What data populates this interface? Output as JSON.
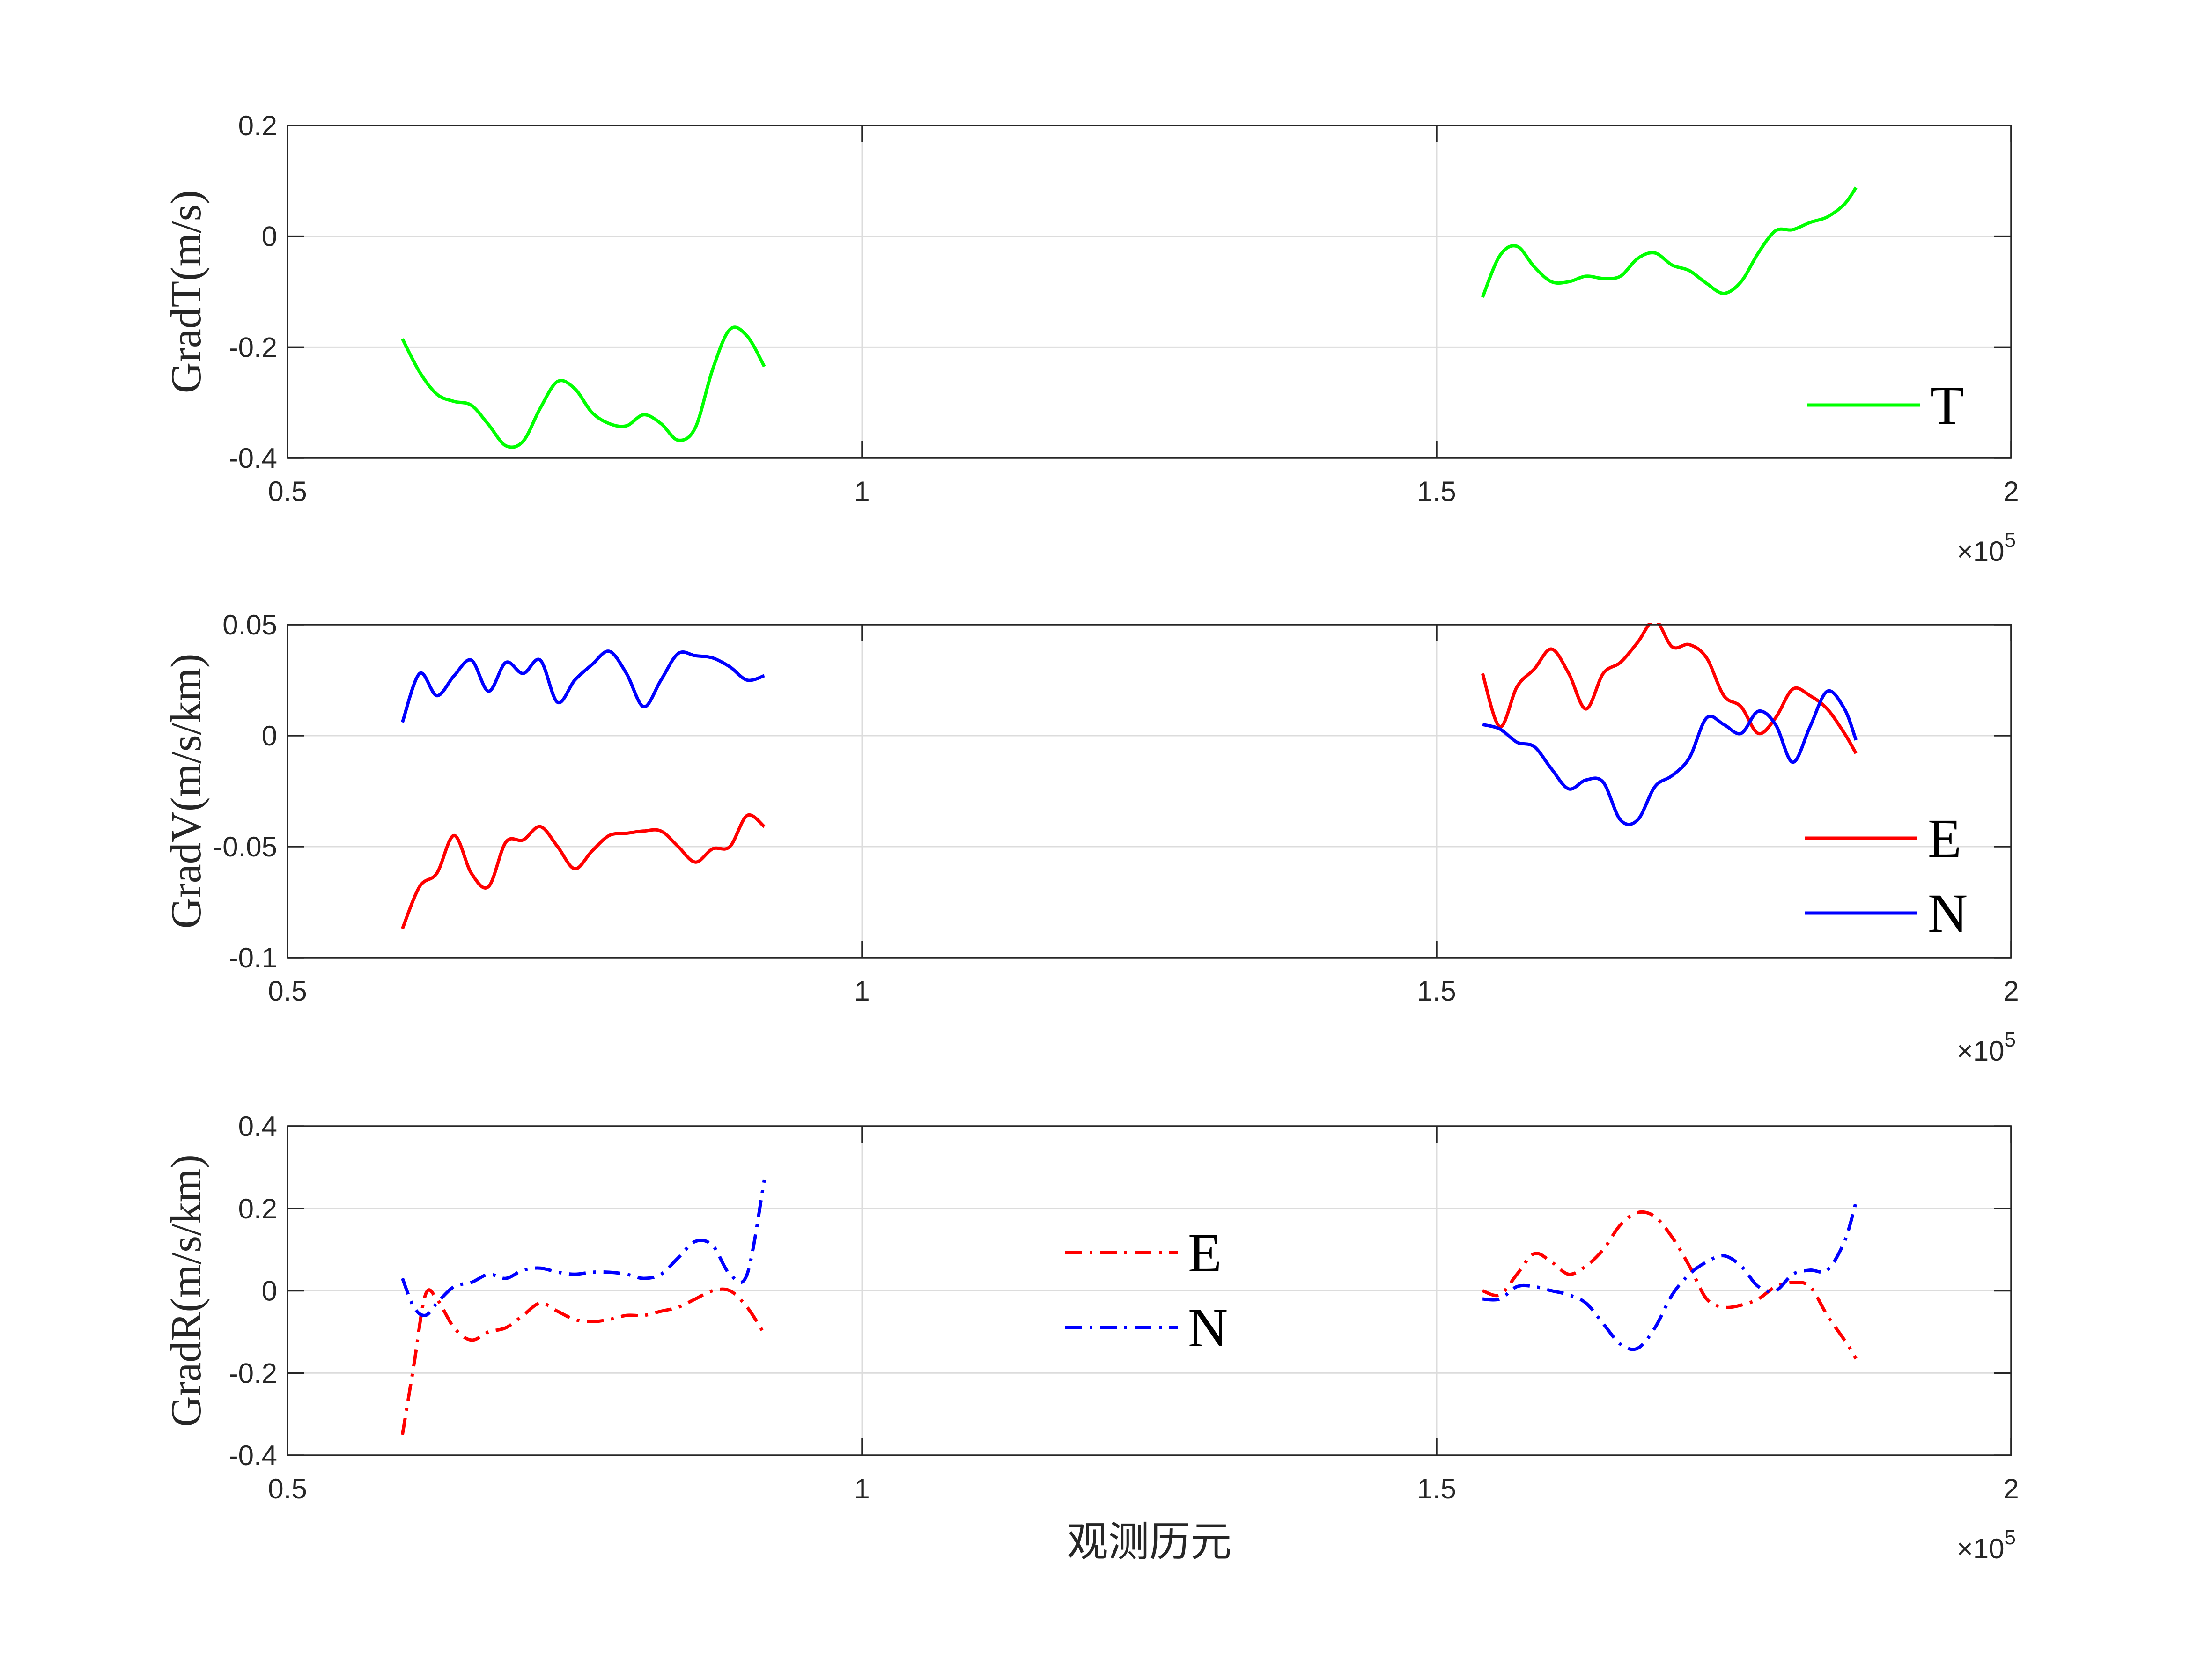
{
  "chart_data": [
    {
      "type": "line",
      "id": "gradT",
      "ylabel": "GradT(m/s)",
      "xlabel": "",
      "x_exponent": "×10",
      "x_exponent_power": "5",
      "xlim": [
        50000,
        200000
      ],
      "ylim": [
        -0.4,
        0.2
      ],
      "xticks": [
        50000,
        100000,
        150000,
        200000
      ],
      "xtick_labels": [
        "0.5",
        "1",
        "1.5",
        "2"
      ],
      "yticks": [
        -0.4,
        -0.2,
        0,
        0.2
      ],
      "ytick_labels": [
        "-0.4",
        "-0.2",
        "0",
        "0.2"
      ],
      "grid": true,
      "legend": {
        "position": "bottom-right",
        "entries": [
          "T"
        ]
      },
      "series": [
        {
          "name": "T",
          "color": "#00ff00",
          "style": "solid",
          "segments": [
            {
              "x": [
                60000,
                61500,
                63000,
                64500,
                66000,
                67500,
                69000,
                70500,
                72000,
                73500,
                75000,
                76500,
                78000,
                79500,
                81000,
                82500,
                84000,
                85500,
                87000,
                88500,
                90000,
                91500
              ],
              "y": [
                -0.185,
                -0.245,
                -0.285,
                -0.298,
                -0.305,
                -0.34,
                -0.378,
                -0.37,
                -0.31,
                -0.262,
                -0.275,
                -0.318,
                -0.338,
                -0.342,
                -0.322,
                -0.338,
                -0.368,
                -0.345,
                -0.24,
                -0.168,
                -0.18,
                -0.235
              ]
            },
            {
              "x": [
                154000,
                155500,
                157000,
                158500,
                160000,
                161500,
                163000,
                164500,
                166000,
                167500,
                169000,
                170500,
                172000,
                173500,
                175000,
                176500,
                178000,
                179500,
                181000,
                182500,
                184000,
                185500,
                186500
              ],
              "y": [
                -0.11,
                -0.035,
                -0.018,
                -0.055,
                -0.082,
                -0.082,
                -0.072,
                -0.076,
                -0.072,
                -0.04,
                -0.03,
                -0.052,
                -0.062,
                -0.085,
                -0.103,
                -0.082,
                -0.03,
                0.01,
                0.012,
                0.025,
                0.035,
                0.058,
                0.088
              ]
            }
          ]
        }
      ]
    },
    {
      "type": "line",
      "id": "gradV",
      "ylabel": "GradV(m/s/km)",
      "xlabel": "",
      "x_exponent": "×10",
      "x_exponent_power": "5",
      "xlim": [
        50000,
        200000
      ],
      "ylim": [
        -0.1,
        0.05
      ],
      "xticks": [
        50000,
        100000,
        150000,
        200000
      ],
      "xtick_labels": [
        "0.5",
        "1",
        "1.5",
        "2"
      ],
      "yticks": [
        -0.1,
        -0.05,
        0,
        0.05
      ],
      "ytick_labels": [
        "-0.1",
        "-0.05",
        "0",
        "0.05"
      ],
      "grid": true,
      "legend": {
        "position": "bottom-right",
        "entries": [
          "E",
          "N"
        ]
      },
      "series": [
        {
          "name": "E",
          "color": "#ff0000",
          "style": "solid",
          "segments": [
            {
              "x": [
                60000,
                61500,
                63000,
                64500,
                66000,
                67500,
                69000,
                70500,
                72000,
                73500,
                75000,
                76500,
                78000,
                79500,
                81000,
                82500,
                84000,
                85500,
                87000,
                88500,
                90000,
                91500
              ],
              "y": [
                -0.087,
                -0.068,
                -0.062,
                -0.045,
                -0.062,
                -0.068,
                -0.048,
                -0.047,
                -0.041,
                -0.05,
                -0.06,
                -0.052,
                -0.045,
                -0.044,
                -0.043,
                -0.043,
                -0.05,
                -0.057,
                -0.051,
                -0.05,
                -0.036,
                -0.041
              ]
            },
            {
              "x": [
                154000,
                155500,
                157000,
                158500,
                160000,
                161500,
                163000,
                164500,
                166000,
                167500,
                169000,
                170500,
                172000,
                173500,
                175000,
                176500,
                178000,
                179500,
                181000,
                182500,
                184000,
                185500,
                186500
              ],
              "y": [
                0.028,
                0.004,
                0.022,
                0.03,
                0.039,
                0.028,
                0.012,
                0.028,
                0.033,
                0.042,
                0.052,
                0.04,
                0.041,
                0.035,
                0.018,
                0.013,
                0.001,
                0.008,
                0.021,
                0.018,
                0.012,
                0.001,
                -0.008
              ]
            }
          ]
        },
        {
          "name": "N",
          "color": "#0000ff",
          "style": "solid",
          "segments": [
            {
              "x": [
                60000,
                61500,
                63000,
                64500,
                66000,
                67500,
                69000,
                70500,
                72000,
                73500,
                75000,
                76500,
                78000,
                79500,
                81000,
                82500,
                84000,
                85500,
                87000,
                88500,
                90000,
                91500
              ],
              "y": [
                0.006,
                0.028,
                0.018,
                0.027,
                0.034,
                0.02,
                0.033,
                0.028,
                0.034,
                0.015,
                0.025,
                0.032,
                0.038,
                0.028,
                0.013,
                0.025,
                0.037,
                0.036,
                0.035,
                0.031,
                0.025,
                0.027
              ]
            },
            {
              "x": [
                154000,
                155500,
                157000,
                158500,
                160000,
                161500,
                163000,
                164500,
                166000,
                167500,
                169000,
                170500,
                172000,
                173500,
                175000,
                176500,
                178000,
                179500,
                181000,
                182500,
                184000,
                185500,
                186500
              ],
              "y": [
                0.005,
                0.003,
                -0.003,
                -0.005,
                -0.015,
                -0.024,
                -0.02,
                -0.021,
                -0.038,
                -0.038,
                -0.023,
                -0.018,
                -0.01,
                0.008,
                0.005,
                0.001,
                0.011,
                0.005,
                -0.012,
                0.004,
                0.02,
                0.012,
                -0.002
              ]
            }
          ]
        }
      ]
    },
    {
      "type": "line",
      "id": "gradR",
      "ylabel": "GradR(m/s/km)",
      "xlabel": "观测历元",
      "x_exponent": "×10",
      "x_exponent_power": "5",
      "xlim": [
        50000,
        200000
      ],
      "ylim": [
        -0.4,
        0.4
      ],
      "xticks": [
        50000,
        100000,
        150000,
        200000
      ],
      "xtick_labels": [
        "0.5",
        "1",
        "1.5",
        "2"
      ],
      "yticks": [
        -0.4,
        -0.2,
        0,
        0.2,
        0.4
      ],
      "ytick_labels": [
        "-0.4",
        "-0.2",
        "0",
        "0.2",
        "0.4"
      ],
      "grid": true,
      "legend": {
        "position": "center",
        "entries": [
          "E",
          "N"
        ]
      },
      "series": [
        {
          "name": "E",
          "color": "#ff0000",
          "style": "dashdot",
          "segments": [
            {
              "x": [
                60000,
                61000,
                62000,
                63000,
                64500,
                66000,
                67500,
                69000,
                70500,
                72000,
                73500,
                75000,
                76500,
                78000,
                79500,
                81000,
                82500,
                84000,
                85500,
                87000,
                88500,
                90000,
                91500
              ],
              "y": [
                -0.35,
                -0.18,
                -0.01,
                -0.02,
                -0.09,
                -0.12,
                -0.1,
                -0.09,
                -0.06,
                -0.03,
                -0.05,
                -0.07,
                -0.075,
                -0.07,
                -0.06,
                -0.06,
                -0.05,
                -0.04,
                -0.02,
                0.0,
                0.0,
                -0.04,
                -0.105
              ]
            },
            {
              "x": [
                154000,
                155500,
                157000,
                158500,
                160000,
                161500,
                163000,
                164500,
                166000,
                167500,
                169000,
                170500,
                172000,
                173500,
                175000,
                176500,
                178000,
                179500,
                181000,
                182500,
                184000,
                185500,
                186500
              ],
              "y": [
                0.0,
                -0.01,
                0.04,
                0.09,
                0.07,
                0.04,
                0.06,
                0.1,
                0.16,
                0.19,
                0.18,
                0.13,
                0.06,
                -0.02,
                -0.04,
                -0.035,
                -0.02,
                0.01,
                0.02,
                0.01,
                -0.06,
                -0.12,
                -0.165
              ]
            }
          ]
        },
        {
          "name": "N",
          "color": "#0000ff",
          "style": "dashdot",
          "segments": [
            {
              "x": [
                60000,
                61000,
                62000,
                63000,
                64500,
                66000,
                67500,
                69000,
                70500,
                72000,
                73500,
                75000,
                76500,
                78000,
                79500,
                81000,
                82500,
                84000,
                85500,
                87000,
                88500,
                90000,
                91500
              ],
              "y": [
                0.03,
                -0.04,
                -0.06,
                -0.03,
                0.01,
                0.02,
                0.04,
                0.03,
                0.05,
                0.055,
                0.045,
                0.04,
                0.045,
                0.045,
                0.04,
                0.03,
                0.04,
                0.08,
                0.12,
                0.11,
                0.04,
                0.04,
                0.27
              ]
            },
            {
              "x": [
                154000,
                155500,
                157000,
                158500,
                160000,
                161500,
                163000,
                164500,
                166000,
                167500,
                169000,
                170500,
                172000,
                173500,
                175000,
                176500,
                178000,
                179500,
                181000,
                182500,
                184000,
                185500,
                186500
              ],
              "y": [
                -0.02,
                -0.02,
                0.01,
                0.01,
                0.0,
                -0.01,
                -0.03,
                -0.08,
                -0.13,
                -0.14,
                -0.09,
                -0.01,
                0.04,
                0.07,
                0.085,
                0.06,
                0.01,
                0.0,
                0.04,
                0.05,
                0.05,
                0.12,
                0.215
              ]
            }
          ]
        }
      ]
    }
  ]
}
